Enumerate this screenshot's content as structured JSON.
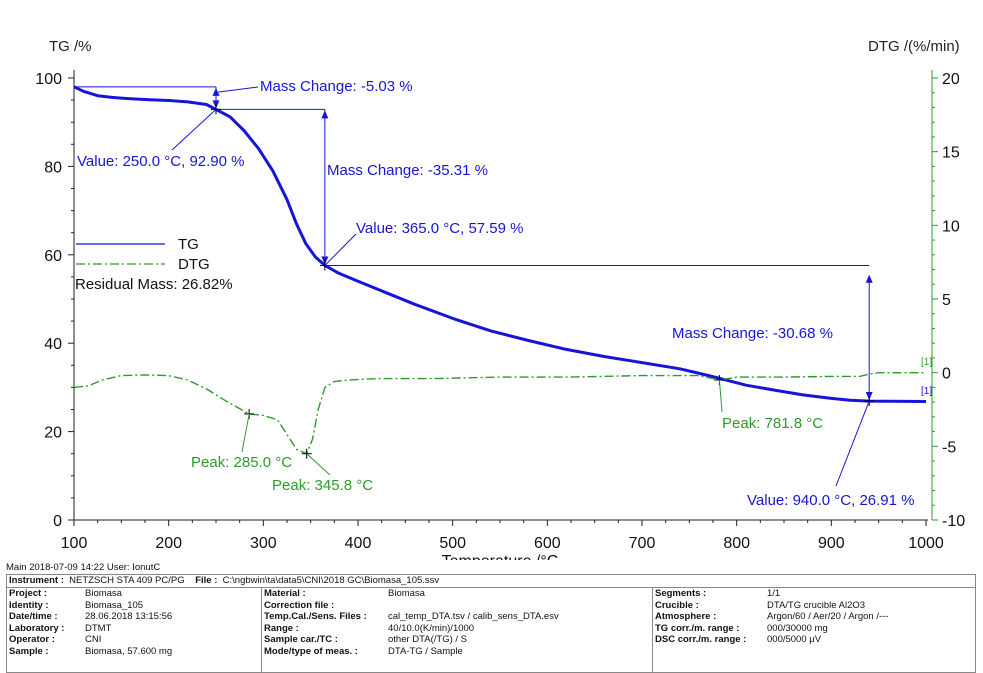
{
  "chart_data": {
    "type": "line",
    "xlabel": "Temperature /°C",
    "ylabel_left": "TG /%",
    "ylabel_right": "DTG /(%/min)",
    "xlim": [
      100,
      1000
    ],
    "ylim_left": [
      0,
      100
    ],
    "ylim_right": [
      -10,
      20
    ],
    "x_ticks": [
      100,
      200,
      300,
      400,
      500,
      600,
      700,
      800,
      900,
      1000
    ],
    "y_ticks_left": [
      0,
      20,
      40,
      60,
      80,
      100
    ],
    "y_ticks_right": [
      -10,
      -5,
      0,
      5,
      10,
      15,
      20
    ],
    "grid": false,
    "legend_position": "left",
    "series": [
      {
        "name": "TG",
        "axis": "left",
        "color": "#1515d9",
        "style": "solid",
        "x": [
          100,
          110,
          125,
          140,
          160,
          180,
          200,
          220,
          240,
          250,
          265,
          280,
          295,
          310,
          325,
          335,
          345,
          355,
          365,
          380,
          400,
          430,
          460,
          500,
          540,
          580,
          620,
          660,
          700,
          740,
          770,
          790,
          810,
          840,
          870,
          900,
          920,
          940,
          960,
          980,
          1000
        ],
        "y": [
          98.0,
          97.0,
          96.0,
          95.6,
          95.3,
          95.1,
          94.9,
          94.6,
          94.0,
          92.9,
          91.2,
          88.0,
          84.0,
          79.0,
          72.5,
          67.0,
          62.5,
          59.5,
          57.6,
          55.8,
          54.0,
          51.4,
          48.8,
          45.6,
          42.8,
          40.6,
          38.6,
          37.0,
          35.6,
          34.2,
          32.7,
          31.6,
          30.5,
          29.4,
          28.3,
          27.5,
          27.1,
          26.91,
          26.85,
          26.83,
          26.82
        ]
      },
      {
        "name": "DTG",
        "axis": "right",
        "color": "#2e9a2e",
        "style": "dash-dot",
        "x": [
          100,
          115,
          130,
          150,
          175,
          200,
          220,
          240,
          260,
          285,
          300,
          315,
          325,
          335,
          345.8,
          352,
          358,
          365,
          375,
          390,
          420,
          480,
          550,
          620,
          700,
          760,
          781.8,
          800,
          850,
          900,
          930,
          940,
          950,
          1000
        ],
        "y": [
          -1.0,
          -0.9,
          -0.5,
          -0.2,
          -0.15,
          -0.2,
          -0.5,
          -1.1,
          -1.9,
          -2.8,
          -2.9,
          -3.2,
          -4.2,
          -5.2,
          -5.5,
          -4.5,
          -2.5,
          -1.0,
          -0.6,
          -0.5,
          -0.4,
          -0.4,
          -0.3,
          -0.3,
          -0.2,
          -0.2,
          -0.5,
          -0.3,
          -0.3,
          -0.25,
          -0.25,
          -0.1,
          0.0,
          0.0
        ]
      }
    ],
    "legend": [
      {
        "label": "TG",
        "series": "TG"
      },
      {
        "label": "DTG",
        "series": "DTG"
      }
    ],
    "residual_mass": "Residual Mass: 26.82%",
    "annotations": [
      {
        "text": "Mass Change: -5.03 %",
        "color": "#1515d9"
      },
      {
        "text": "Value: 250.0 °C, 92.90 %",
        "color": "#1515d9",
        "x": 250.0,
        "y": 92.9
      },
      {
        "text": "Mass Change: -35.31 %",
        "color": "#1515d9"
      },
      {
        "text": "Value: 365.0 °C, 57.59 %",
        "color": "#1515d9",
        "x": 365.0,
        "y": 57.59
      },
      {
        "text": "Mass Change: -30.68 %",
        "color": "#1515d9"
      },
      {
        "text": "Value: 940.0 °C, 26.91 %",
        "color": "#1515d9",
        "x": 940.0,
        "y": 26.91
      },
      {
        "text": "Peak: 285.0 °C",
        "color": "#2e9a2e",
        "x": 285.0
      },
      {
        "text": "Peak: 345.8 °C",
        "color": "#2e9a2e",
        "x": 345.8
      },
      {
        "text": "Peak: 781.8 °C",
        "color": "#2e9a2e",
        "x": 781.8
      }
    ],
    "end_markers": [
      "[1]",
      "[1]"
    ]
  },
  "footer": {
    "main": "Main   2018-07-09 14:22   User: IonutC",
    "instrument_label": "Instrument :",
    "instrument_value": "NETZSCH STA 409 PC/PG",
    "file_label": "File :",
    "file_value": "C:\\ngbwin\\ta\\data5\\CNI\\2018 GC\\Biomasa_105.ssv",
    "col1": [
      {
        "k": "Project :",
        "v": "Biomasa"
      },
      {
        "k": "Identity :",
        "v": "Biomasa_105"
      },
      {
        "k": "Date/time :",
        "v": "28.06.2018 13:15:56"
      },
      {
        "k": "Laboratory :",
        "v": "DTMT"
      },
      {
        "k": "Operator :",
        "v": "CNI"
      },
      {
        "k": "Sample :",
        "v": "Biomasa, 57.600 mg"
      }
    ],
    "col2": [
      {
        "k": "Material :",
        "v": "Biomasa"
      },
      {
        "k": "Correction file :",
        "v": ""
      },
      {
        "k": "Temp.Cal./Sens. Files :",
        "v": "cal_temp_DTA.tsv / calib_sens_DTA.esv"
      },
      {
        "k": "Range :",
        "v": "40/10.0(K/min)/1000"
      },
      {
        "k": "Sample car./TC :",
        "v": "other DTA(/TG) / S"
      },
      {
        "k": "Mode/type of meas. :",
        "v": "DTA-TG / Sample"
      }
    ],
    "col3": [
      {
        "k": "Segments :",
        "v": "1/1"
      },
      {
        "k": "Crucible :",
        "v": "DTA/TG crucible Al2O3"
      },
      {
        "k": "Atmosphere :",
        "v": "Argon/60 / Aer/20 / Argon /---"
      },
      {
        "k": "TG corr./m. range :",
        "v": "000/30000 mg"
      },
      {
        "k": "DSC corr./m. range :",
        "v": "000/5000 µV"
      }
    ]
  }
}
